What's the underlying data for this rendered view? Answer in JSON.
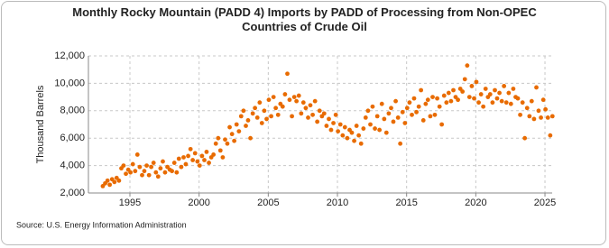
{
  "chart_data": {
    "type": "scatter",
    "title": "Monthly Rocky Mountain (PADD 4) Imports by PADD of Processing from Non-OPEC Countries of Crude Oil",
    "y_label": "Thousand Barrels",
    "source": "Source: U.S. Energy Information Administration",
    "color": "#e86b00",
    "grid": true,
    "xlim": [
      1992,
      2025.52
    ],
    "ylim": [
      2000,
      12000
    ],
    "xticks": [
      1995,
      2000,
      2005,
      2010,
      2015,
      2020,
      2025
    ],
    "yticks": [
      {
        "value": 2000,
        "label": "2,000"
      },
      {
        "value": 4000,
        "label": "4,000"
      },
      {
        "value": 6000,
        "label": "6,000"
      },
      {
        "value": 8000,
        "label": "8,000"
      },
      {
        "value": 10000,
        "label": "10,000"
      },
      {
        "value": 12000,
        "label": "12,000"
      }
    ],
    "x": [
      1993.04,
      1993.21,
      1993.38,
      1993.54,
      1993.71,
      1993.88,
      1994.04,
      1994.21,
      1994.38,
      1994.54,
      1994.71,
      1994.88,
      1995.04,
      1995.21,
      1995.38,
      1995.54,
      1995.71,
      1995.88,
      1996.04,
      1996.21,
      1996.38,
      1996.54,
      1996.71,
      1996.88,
      1997.04,
      1997.21,
      1997.38,
      1997.54,
      1997.71,
      1997.88,
      1998.04,
      1998.21,
      1998.38,
      1998.54,
      1998.71,
      1998.88,
      1999.04,
      1999.21,
      1999.38,
      1999.54,
      1999.71,
      1999.88,
      2000.04,
      2000.21,
      2000.38,
      2000.54,
      2000.71,
      2000.88,
      2001.04,
      2001.21,
      2001.38,
      2001.54,
      2001.71,
      2001.88,
      2002.04,
      2002.21,
      2002.38,
      2002.54,
      2002.71,
      2002.88,
      2003.04,
      2003.21,
      2003.38,
      2003.54,
      2003.71,
      2003.88,
      2004.04,
      2004.21,
      2004.38,
      2004.54,
      2004.71,
      2004.88,
      2005.04,
      2005.21,
      2005.38,
      2005.54,
      2005.71,
      2005.88,
      2006.04,
      2006.21,
      2006.38,
      2006.54,
      2006.71,
      2006.88,
      2007.04,
      2007.21,
      2007.38,
      2007.54,
      2007.71,
      2007.88,
      2008.04,
      2008.21,
      2008.38,
      2008.54,
      2008.71,
      2008.88,
      2009.04,
      2009.21,
      2009.38,
      2009.54,
      2009.71,
      2009.88,
      2010.04,
      2010.21,
      2010.38,
      2010.54,
      2010.71,
      2010.88,
      2011.04,
      2011.21,
      2011.38,
      2011.54,
      2011.71,
      2011.88,
      2012.04,
      2012.21,
      2012.38,
      2012.54,
      2012.71,
      2012.88,
      2013.04,
      2013.21,
      2013.38,
      2013.54,
      2013.71,
      2013.88,
      2014.04,
      2014.21,
      2014.38,
      2014.54,
      2014.71,
      2014.88,
      2015.04,
      2015.21,
      2015.38,
      2015.54,
      2015.71,
      2015.88,
      2016.04,
      2016.21,
      2016.38,
      2016.54,
      2016.71,
      2016.88,
      2017.04,
      2017.21,
      2017.38,
      2017.54,
      2017.71,
      2017.88,
      2018.04,
      2018.21,
      2018.38,
      2018.54,
      2018.71,
      2018.88,
      2019.04,
      2019.21,
      2019.38,
      2019.54,
      2019.71,
      2019.88,
      2020.04,
      2020.21,
      2020.38,
      2020.54,
      2020.71,
      2020.88,
      2021.04,
      2021.21,
      2021.38,
      2021.54,
      2021.71,
      2021.88,
      2022.04,
      2022.21,
      2022.38,
      2022.54,
      2022.71,
      2022.88,
      2023.04,
      2023.21,
      2023.38,
      2023.54,
      2023.71,
      2023.88,
      2024.04,
      2024.21,
      2024.38,
      2024.54,
      2024.71,
      2024.88,
      2025.04,
      2025.21,
      2025.38,
      2025.54
    ],
    "values": [
      2500,
      2700,
      2900,
      2600,
      3000,
      2800,
      3100,
      2900,
      3800,
      4000,
      3400,
      3700,
      3500,
      4100,
      3600,
      4800,
      3900,
      3300,
      3600,
      4000,
      3300,
      3900,
      4200,
      3500,
      3200,
      3800,
      4300,
      3500,
      3900,
      3700,
      3600,
      4200,
      3500,
      4500,
      3900,
      4600,
      4100,
      4700,
      5200,
      4400,
      4900,
      4300,
      4000,
      4700,
      4400,
      5000,
      4200,
      4600,
      4800,
      5600,
      6000,
      5100,
      4600,
      5900,
      5600,
      6800,
      6300,
      5800,
      7000,
      6500,
      7600,
      8000,
      6900,
      7300,
      6000,
      7800,
      8200,
      7500,
      8600,
      7100,
      8000,
      7400,
      8800,
      7600,
      9000,
      8200,
      7700,
      8500,
      8300,
      9200,
      10700,
      8800,
      7600,
      9000,
      8700,
      9100,
      7800,
      8600,
      8200,
      7500,
      8400,
      7700,
      8700,
      7200,
      8000,
      7600,
      7800,
      6900,
      7400,
      6600,
      7100,
      7700,
      6500,
      7000,
      6200,
      6800,
      6000,
      6600,
      6400,
      5800,
      6900,
      6200,
      5600,
      6700,
      7500,
      8000,
      7000,
      8300,
      6700,
      7600,
      6600,
      8500,
      7400,
      6400,
      7800,
      8200,
      7200,
      8700,
      7500,
      5600,
      7900,
      7100,
      8200,
      8600,
      7700,
      8900,
      7900,
      8300,
      9500,
      7300,
      8500,
      8800,
      7600,
      9000,
      7700,
      8900,
      8300,
      7000,
      9100,
      8600,
      9300,
      8700,
      9500,
      9000,
      8800,
      9600,
      9400,
      10300,
      11300,
      9000,
      9800,
      8900,
      10100,
      8600,
      9200,
      8300,
      9600,
      9000,
      9200,
      8600,
      9500,
      8900,
      9300,
      8700,
      9800,
      8600,
      9300,
      8500,
      9600,
      9000,
      8900,
      7700,
      8600,
      6000,
      8200,
      7600,
      8700,
      7400,
      9700,
      8000,
      7500,
      8800,
      8100,
      7500,
      6200,
      7600
    ]
  }
}
